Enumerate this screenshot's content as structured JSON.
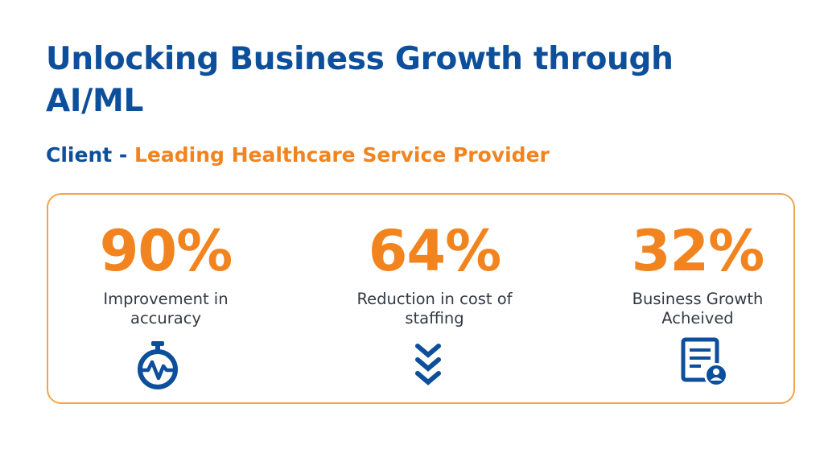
{
  "heading": {
    "title": "Unlocking Business Growth through AI/ML",
    "subtitle_prefix": "Client - ",
    "subtitle_client": "Leading Healthcare Service Provider"
  },
  "stats": [
    {
      "value": "90%",
      "label": "Improvement in accuracy",
      "icon": "stopwatch-pulse-icon"
    },
    {
      "value": "64%",
      "label": "Reduction in cost of staffing",
      "icon": "chevrons-down-icon"
    },
    {
      "value": "32%",
      "label": "Business Growth Acheived",
      "icon": "document-user-icon"
    }
  ],
  "colors": {
    "primary_blue": "#0d4f9a",
    "accent_orange": "#f2841f",
    "card_border": "#f2a54f",
    "label_text": "#333a44"
  }
}
